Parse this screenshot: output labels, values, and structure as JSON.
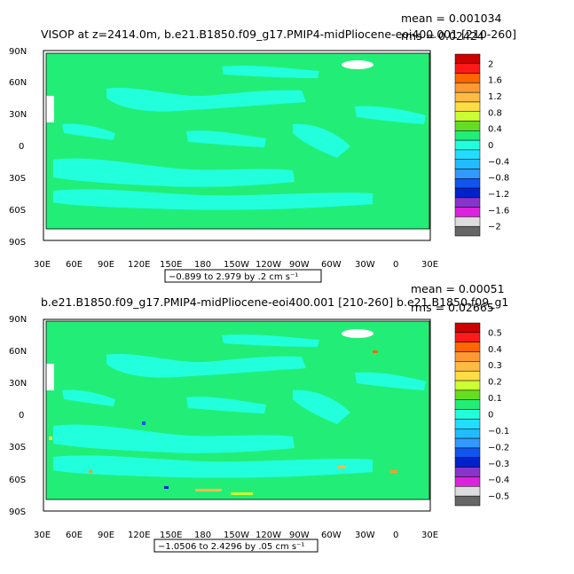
{
  "panels": [
    {
      "title": "VISOP at z=2414.0m, b.e21.B1850.f09_g17.PMIP4-midPliocene-eoi400.001  [210-260]",
      "stats": {
        "mean": "mean = 0.001034",
        "rms": "rms = 0.02424"
      },
      "range_note": "−0.899 to 2.979 by .2 cm s⁻¹",
      "colorbar": {
        "labels": [
          "2",
          "1.6",
          "1.2",
          "0.8",
          "0.4",
          "0",
          "−0.4",
          "−0.8",
          "−1.2",
          "−1.6",
          "−2"
        ],
        "colors": [
          "#cc0000",
          "#ff1a1a",
          "#ff6600",
          "#ff9933",
          "#ffbb44",
          "#ffdd44",
          "#ccff33",
          "#66dd22",
          "#22ee77",
          "#22ffdd",
          "#22ddff",
          "#22bbff",
          "#3399ff",
          "#1155ee",
          "#0022cc",
          "#8833cc",
          "#dd22dd",
          "#dddddd",
          "#666666"
        ]
      }
    },
    {
      "title": "b.e21.B1850.f09_g17.PMIP4-midPliocene-eoi400.001  [210-260]  b.e21.B1850.f09_g1",
      "stats": {
        "mean": "mean = 0.00051",
        "rms": "rms = 0.02665"
      },
      "range_note": "−1.0506 to 2.4296 by .05 cm s⁻¹",
      "colorbar": {
        "labels": [
          "0.5",
          "0.4",
          "0.3",
          "0.2",
          "0.1",
          "0",
          "−0.1",
          "−0.2",
          "−0.3",
          "−0.4",
          "−0.5"
        ],
        "colors": [
          "#cc0000",
          "#ff1a1a",
          "#ff6600",
          "#ff9933",
          "#ffbb44",
          "#ffdd44",
          "#ccff33",
          "#66dd22",
          "#22ee77",
          "#22ffdd",
          "#22ddff",
          "#22bbff",
          "#3399ff",
          "#1155ee",
          "#0022cc",
          "#8833cc",
          "#dd22dd",
          "#dddddd",
          "#666666"
        ]
      }
    }
  ],
  "chart_data": [
    {
      "type": "heatmap",
      "title": "VISOP at z=2414.0m, b.e21.B1850.f09_g17.PMIP4-midPliocene-eoi400.001  [210-260]",
      "x_tick_labels": [
        "30E",
        "60E",
        "90E",
        "120E",
        "150E",
        "180",
        "150W",
        "120W",
        "90W",
        "60W",
        "30W",
        "0",
        "30E"
      ],
      "y_tick_labels": [
        "90N",
        "60N",
        "30N",
        "0",
        "30S",
        "60S",
        "90S"
      ],
      "ylim": [
        -90,
        90
      ],
      "mean": 0.001034,
      "rms": 0.02424,
      "contour_levels": [
        -2,
        -1.6,
        -1.2,
        -0.8,
        -0.4,
        0,
        0.4,
        0.8,
        1.2,
        1.6,
        2
      ],
      "units": "cm s-1",
      "note": "-.899 to 2.979 by .2 cm s-1"
    },
    {
      "type": "heatmap",
      "title": "b.e21.B1850.f09_g17.PMIP4-midPliocene-eoi400.001  [210-260]",
      "x_tick_labels": [
        "30E",
        "60E",
        "90E",
        "120E",
        "150E",
        "180",
        "150W",
        "120W",
        "90W",
        "60W",
        "30W",
        "0",
        "30E"
      ],
      "y_tick_labels": [
        "90N",
        "60N",
        "30N",
        "0",
        "30S",
        "60S",
        "90S"
      ],
      "ylim": [
        -90,
        90
      ],
      "mean": 0.00051,
      "rms": 0.02665,
      "contour_levels": [
        -0.5,
        -0.4,
        -0.3,
        -0.2,
        -0.1,
        0,
        0.1,
        0.2,
        0.3,
        0.4,
        0.5
      ],
      "units": "cm s-1",
      "note": "-1.0506 to 2.4296 by .05 cm s-1"
    }
  ],
  "map_colors": {
    "base": "#22ee77",
    "patch": "#22ffdd",
    "land": "#ffffff"
  },
  "axes": {
    "x_labels": [
      "30E",
      "60E",
      "90E",
      "120E",
      "150E",
      "180",
      "150W",
      "120W",
      "90W",
      "60W",
      "30W",
      "0",
      "30E"
    ],
    "y_labels": [
      "90N",
      "60N",
      "30N",
      "0",
      "30S",
      "60S",
      "90S"
    ]
  }
}
